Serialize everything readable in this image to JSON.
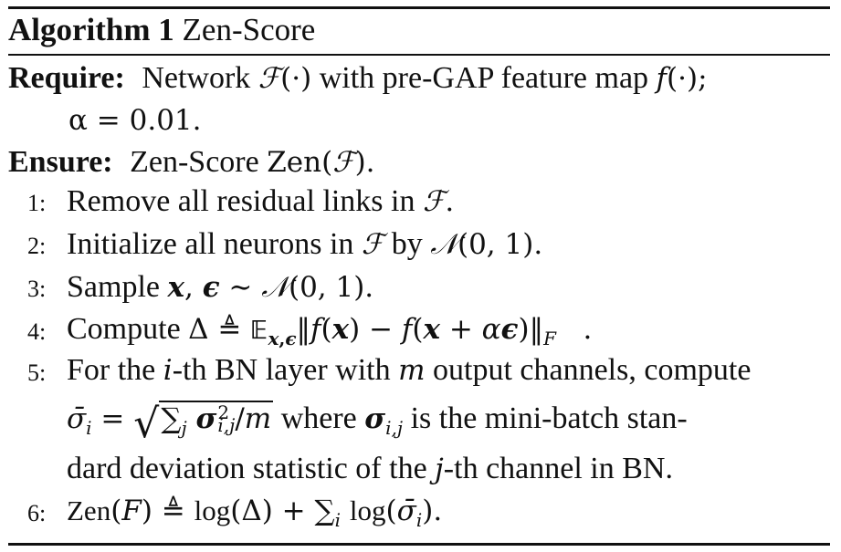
{
  "algorithm": {
    "label": "Algorithm 1",
    "name": "Zen-Score"
  },
  "require": {
    "keyword": "Require:",
    "text_1": "Network",
    "text_2": "with pre-GAP feature map",
    "text_3": "α = 0.01."
  },
  "ensure": {
    "keyword": "Ensure:",
    "text": "Zen-Score"
  },
  "steps": [
    {
      "num": "1:",
      "text": "Remove all residual links in"
    },
    {
      "num": "2:",
      "text": "Initialize all neurons in",
      "text_b": "by"
    },
    {
      "num": "3:",
      "text": "Sample"
    },
    {
      "num": "4:",
      "text": "Compute"
    },
    {
      "num": "5:",
      "text": "For the",
      "text_b": "-th BN layer with",
      "text_c": "output channels, compute",
      "text_d": "where",
      "text_e": "is the mini-batch stan-",
      "text_f": "dard deviation statistic of the",
      "text_g": "-th channel in BN."
    },
    {
      "num": "6:",
      "text": ""
    }
  ]
}
